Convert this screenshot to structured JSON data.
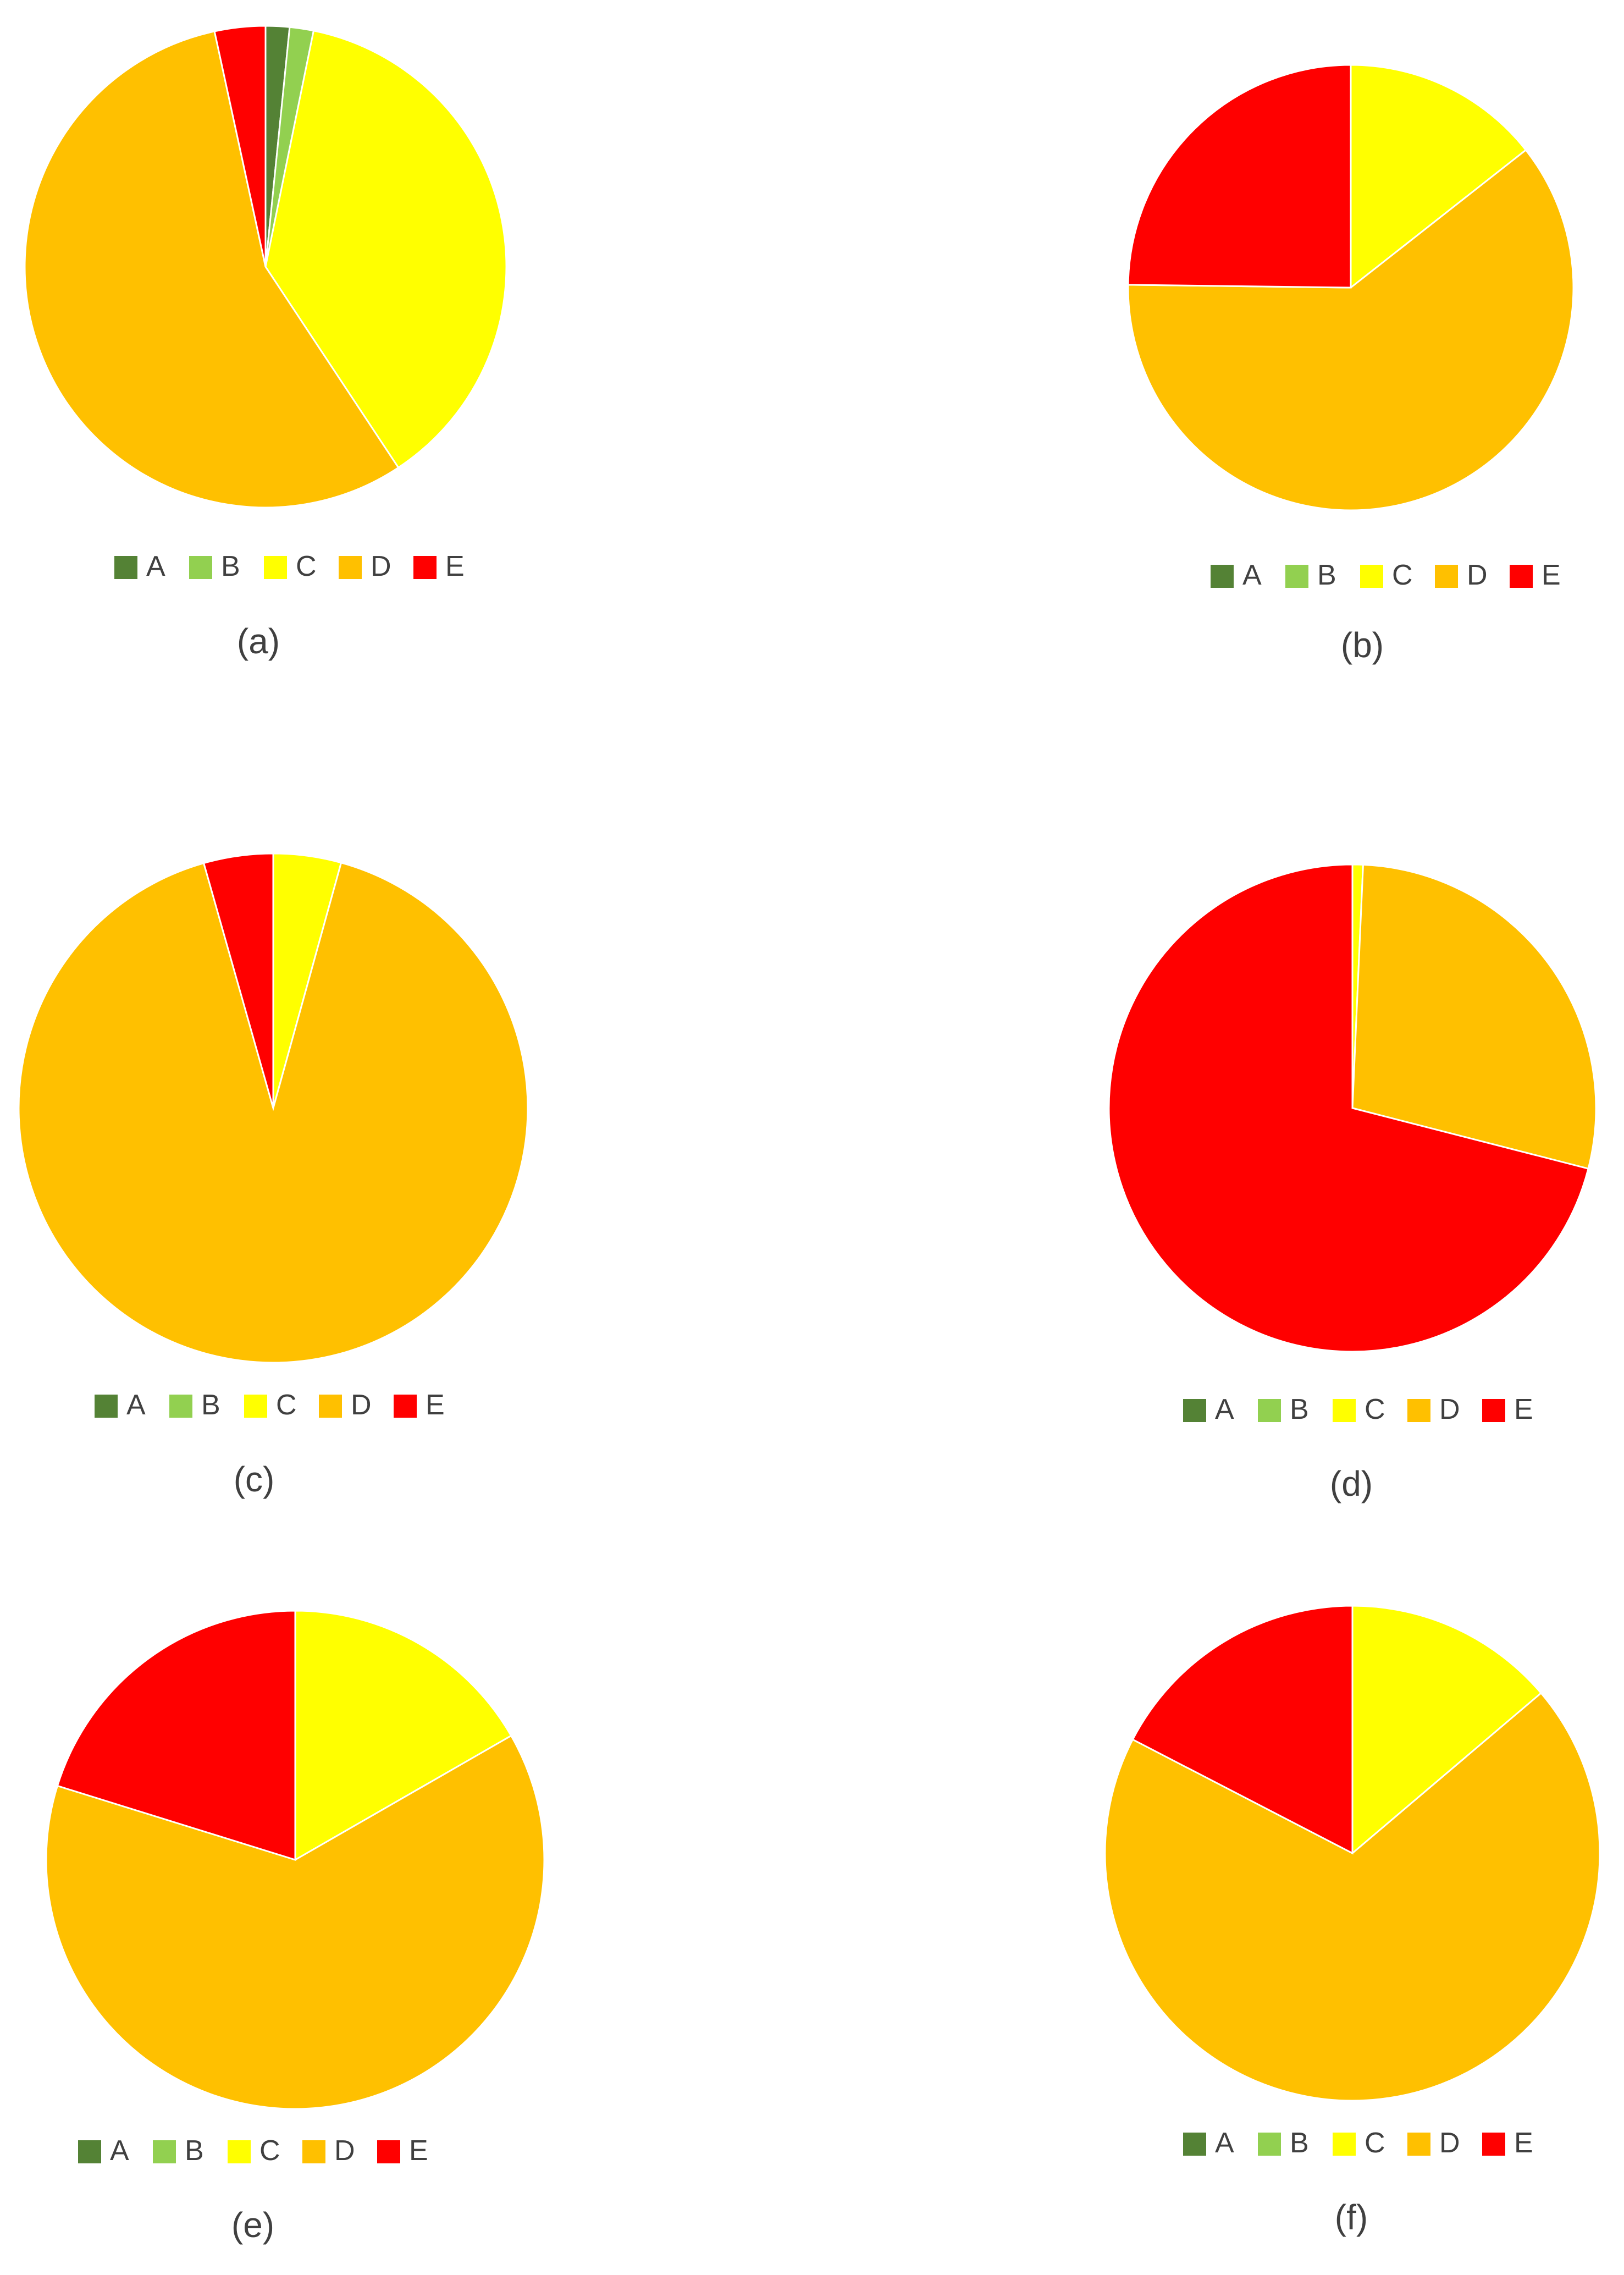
{
  "colors": {
    "A": "#548235",
    "B": "#92D050",
    "C": "#FFFF00",
    "D": "#FFC000",
    "E": "#FF0000",
    "text": "#404040"
  },
  "chart_data": [
    {
      "type": "pie",
      "caption": "(a)",
      "categories": [
        "A",
        "B",
        "C",
        "D",
        "E"
      ],
      "values": [
        1.6,
        1.6,
        37.5,
        55.9,
        3.4
      ],
      "legend": "bottom",
      "start_angle_deg": 0
    },
    {
      "type": "pie",
      "caption": "(b)",
      "categories": [
        "A",
        "B",
        "C",
        "D",
        "E"
      ],
      "values": [
        0,
        0,
        14.4,
        60.8,
        24.8
      ],
      "legend": "bottom",
      "start_angle_deg": 0
    },
    {
      "type": "pie",
      "caption": "(c)",
      "categories": [
        "A",
        "B",
        "C",
        "D",
        "E"
      ],
      "values": [
        0,
        0,
        4.3,
        91.3,
        4.4
      ],
      "legend": "bottom",
      "start_angle_deg": 0
    },
    {
      "type": "pie",
      "caption": "(d)",
      "categories": [
        "A",
        "B",
        "C",
        "D",
        "E"
      ],
      "values": [
        0,
        0,
        0.7,
        28.3,
        71.0
      ],
      "legend": "bottom",
      "start_angle_deg": 0
    },
    {
      "type": "pie",
      "caption": "(e)",
      "categories": [
        "A",
        "B",
        "C",
        "D",
        "E"
      ],
      "values": [
        0,
        0,
        16.7,
        63.1,
        20.2
      ],
      "legend": "bottom",
      "start_angle_deg": 0
    },
    {
      "type": "pie",
      "caption": "(f)",
      "categories": [
        "A",
        "B",
        "C",
        "D",
        "E"
      ],
      "values": [
        0,
        0,
        13.8,
        68.8,
        17.4
      ],
      "legend": "bottom",
      "start_angle_deg": 0
    }
  ]
}
